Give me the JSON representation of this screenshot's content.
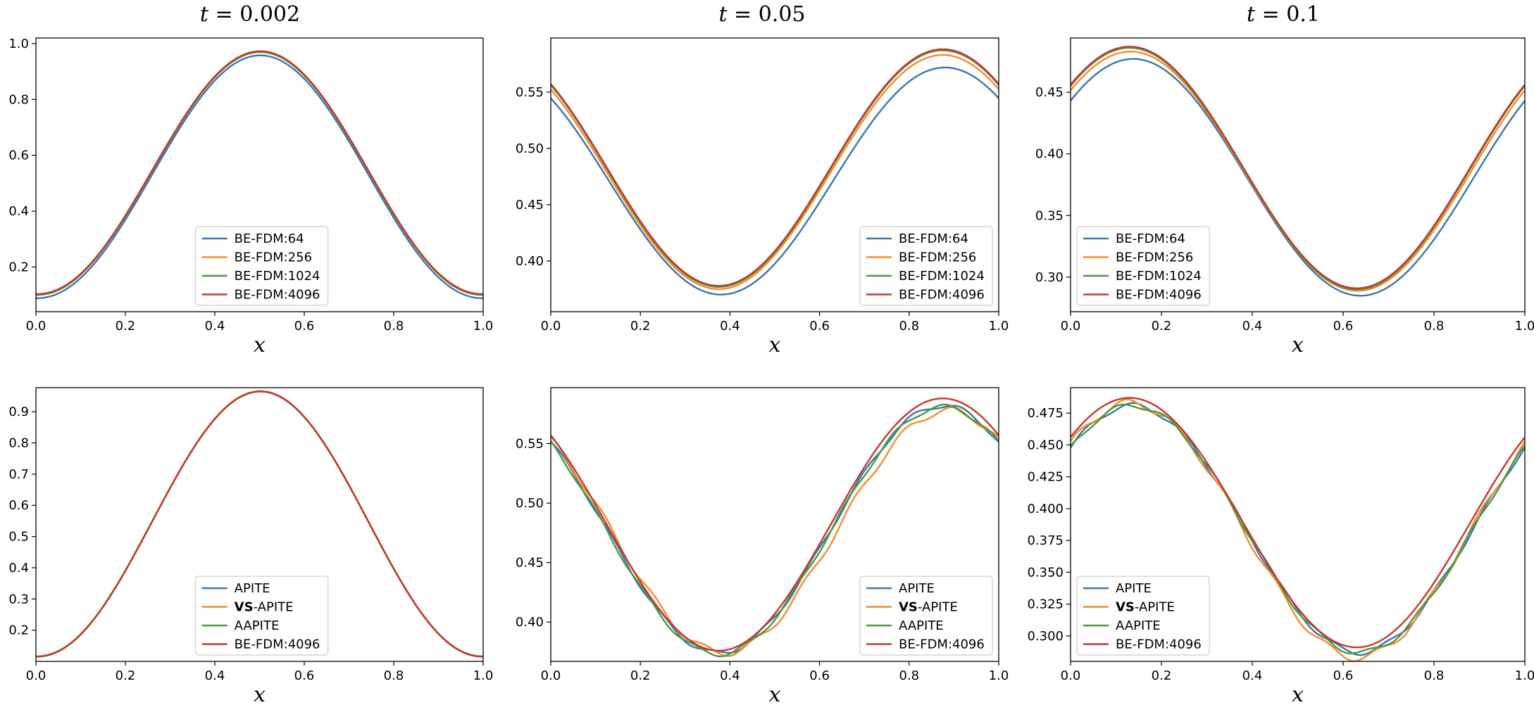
{
  "colors": {
    "blue": "#3a75b0",
    "orange": "#f28c2e",
    "green": "#4a9a3e",
    "red": "#c8372d"
  },
  "chart_data": [
    {
      "type": "line",
      "title": "t = 0.002",
      "xlabel": "x",
      "xlim": [
        0,
        1
      ],
      "ylim": [
        0.04,
        1.02
      ],
      "xticks": [
        "0.0",
        "0.2",
        "0.4",
        "0.6",
        "0.8",
        "1.0"
      ],
      "yticks": [
        0.2,
        0.4,
        0.6,
        0.8,
        1.0
      ],
      "ytick_labels": [
        "0.2",
        "0.4",
        "0.6",
        "0.8",
        "1.0"
      ],
      "legend": "lower-center",
      "curve": {
        "kind": "hump",
        "base": 0.1,
        "amp": 0.87,
        "peak": 0.51
      },
      "series": [
        {
          "name": "BE-FDM:64",
          "color": "blue",
          "shift": 0,
          "scale": 1,
          "offset": -0.012,
          "wobble": 0
        },
        {
          "name": "BE-FDM:256",
          "color": "orange",
          "shift": 0,
          "scale": 1,
          "offset": 0,
          "wobble": 0
        },
        {
          "name": "BE-FDM:1024",
          "color": "green",
          "shift": 0,
          "scale": 1,
          "offset": 0,
          "wobble": 0
        },
        {
          "name": "BE-FDM:4096",
          "color": "red",
          "shift": 0,
          "scale": 1,
          "offset": 0.003,
          "wobble": 0
        }
      ]
    },
    {
      "type": "line",
      "title": "t = 0.05",
      "xlabel": "x",
      "xlim": [
        0,
        1
      ],
      "ylim": [
        0.355,
        0.598
      ],
      "xticks": [
        "0.0",
        "0.2",
        "0.4",
        "0.6",
        "0.8",
        "1.0"
      ],
      "yticks": [
        0.4,
        0.45,
        0.5,
        0.55
      ],
      "ytick_labels": [
        "0.40",
        "0.45",
        "0.50",
        "0.55"
      ],
      "legend": "lower-right",
      "curve": {
        "kind": "cos",
        "mean": 0.482,
        "amp": 0.105,
        "peak": 0.875
      },
      "series": [
        {
          "name": "BE-FDM:64",
          "color": "blue",
          "shift": 0.005,
          "scale": 0.96,
          "offset": -0.011,
          "wobble": 0
        },
        {
          "name": "BE-FDM:256",
          "color": "orange",
          "shift": 0,
          "scale": 0.99,
          "offset": -0.003,
          "wobble": 0
        },
        {
          "name": "BE-FDM:1024",
          "color": "green",
          "shift": 0,
          "scale": 1,
          "offset": 0,
          "wobble": 0
        },
        {
          "name": "BE-FDM:4096",
          "color": "red",
          "shift": 0,
          "scale": 1,
          "offset": 0.001,
          "wobble": 0
        }
      ]
    },
    {
      "type": "line",
      "title": "t = 0.1",
      "xlabel": "x",
      "xlim": [
        0,
        1
      ],
      "ylim": [
        0.272,
        0.494
      ],
      "xticks": [
        "0.0",
        "0.2",
        "0.4",
        "0.6",
        "0.8",
        "1.0"
      ],
      "yticks": [
        0.3,
        0.35,
        0.4,
        0.45
      ],
      "ytick_labels": [
        "0.30",
        "0.35",
        "0.40",
        "0.45"
      ],
      "legend": "lower-left",
      "curve": {
        "kind": "cos",
        "mean": 0.389,
        "amp": 0.098,
        "peak": 0.13
      },
      "series": [
        {
          "name": "BE-FDM:64",
          "color": "blue",
          "shift": 0.008,
          "scale": 0.98,
          "offset": -0.008,
          "wobble": 0
        },
        {
          "name": "BE-FDM:256",
          "color": "orange",
          "shift": 0.002,
          "scale": 0.99,
          "offset": -0.003,
          "wobble": 0
        },
        {
          "name": "BE-FDM:1024",
          "color": "green",
          "shift": 0,
          "scale": 1,
          "offset": -0.001,
          "wobble": 0
        },
        {
          "name": "BE-FDM:4096",
          "color": "red",
          "shift": 0,
          "scale": 1,
          "offset": 0,
          "wobble": 0
        }
      ]
    },
    {
      "type": "line",
      "title": "",
      "xlabel": "x",
      "xlim": [
        0,
        1
      ],
      "ylim": [
        0.1,
        0.977
      ],
      "xticks": [
        "0.0",
        "0.2",
        "0.4",
        "0.6",
        "0.8",
        "1.0"
      ],
      "yticks": [
        0.2,
        0.3,
        0.4,
        0.5,
        0.6,
        0.7,
        0.8,
        0.9
      ],
      "ytick_labels": [
        "0.2",
        "0.3",
        "0.4",
        "0.5",
        "0.6",
        "0.7",
        "0.8",
        "0.9"
      ],
      "legend": "lower-center",
      "curve": {
        "kind": "hump",
        "base": 0.115,
        "amp": 0.85,
        "peak": 0.51
      },
      "series": [
        {
          "name": "APITE",
          "color": "blue",
          "shift": 0,
          "scale": 1,
          "offset": 0,
          "wobble": 0
        },
        {
          "name": "VS-APITE",
          "color": "orange",
          "shift": 0,
          "scale": 1,
          "offset": 0,
          "wobble": 0
        },
        {
          "name": "AAPITE",
          "color": "green",
          "shift": 0,
          "scale": 1,
          "offset": 0,
          "wobble": 0
        },
        {
          "name": "BE-FDM:4096",
          "color": "red",
          "shift": 0,
          "scale": 1,
          "offset": 0.001,
          "wobble": 0
        }
      ]
    },
    {
      "type": "line",
      "title": "",
      "xlabel": "x",
      "xlim": [
        0,
        1
      ],
      "ylim": [
        0.367,
        0.597
      ],
      "xticks": [
        "0.0",
        "0.2",
        "0.4",
        "0.6",
        "0.8",
        "1.0"
      ],
      "yticks": [
        0.4,
        0.45,
        0.5,
        0.55
      ],
      "ytick_labels": [
        "0.40",
        "0.45",
        "0.50",
        "0.55"
      ],
      "legend": "lower-right",
      "curve": {
        "kind": "cos",
        "mean": 0.481,
        "amp": 0.106,
        "peak": 0.875
      },
      "series": [
        {
          "name": "APITE",
          "color": "blue",
          "shift": 0,
          "scale": 0.98,
          "offset": -0.003,
          "wobble": 0.002
        },
        {
          "name": "VS-APITE",
          "color": "orange",
          "shift": 0.012,
          "scale": 0.96,
          "offset": -0.005,
          "wobble": 0.003
        },
        {
          "name": "AAPITE",
          "color": "green",
          "shift": 0,
          "scale": 0.98,
          "offset": -0.004,
          "wobble": 0.002
        },
        {
          "name": "BE-FDM:4096",
          "color": "red",
          "shift": 0,
          "scale": 1,
          "offset": 0.001,
          "wobble": 0
        }
      ]
    },
    {
      "type": "line",
      "title": "",
      "xlabel": "x",
      "xlim": [
        0,
        1
      ],
      "ylim": [
        0.28,
        0.495
      ],
      "xticks": [
        "0.0",
        "0.2",
        "0.4",
        "0.6",
        "0.8",
        "1.0"
      ],
      "yticks": [
        0.3,
        0.325,
        0.35,
        0.375,
        0.4,
        0.425,
        0.45,
        0.475
      ],
      "ytick_labels": [
        "0.300",
        "0.325",
        "0.350",
        "0.375",
        "0.400",
        "0.425",
        "0.450",
        "0.475"
      ],
      "legend": "lower-left",
      "curve": {
        "kind": "cos",
        "mean": 0.389,
        "amp": 0.098,
        "peak": 0.13
      },
      "series": [
        {
          "name": "APITE",
          "color": "blue",
          "shift": 0.006,
          "scale": 0.99,
          "offset": -0.005,
          "wobble": 0.002
        },
        {
          "name": "VS-APITE",
          "color": "orange",
          "shift": 0.002,
          "scale": 1.02,
          "offset": -0.006,
          "wobble": 0.003
        },
        {
          "name": "AAPITE",
          "color": "green",
          "shift": 0.006,
          "scale": 0.99,
          "offset": -0.005,
          "wobble": 0.002
        },
        {
          "name": "BE-FDM:4096",
          "color": "red",
          "shift": 0,
          "scale": 1,
          "offset": 0,
          "wobble": 0
        }
      ]
    }
  ]
}
